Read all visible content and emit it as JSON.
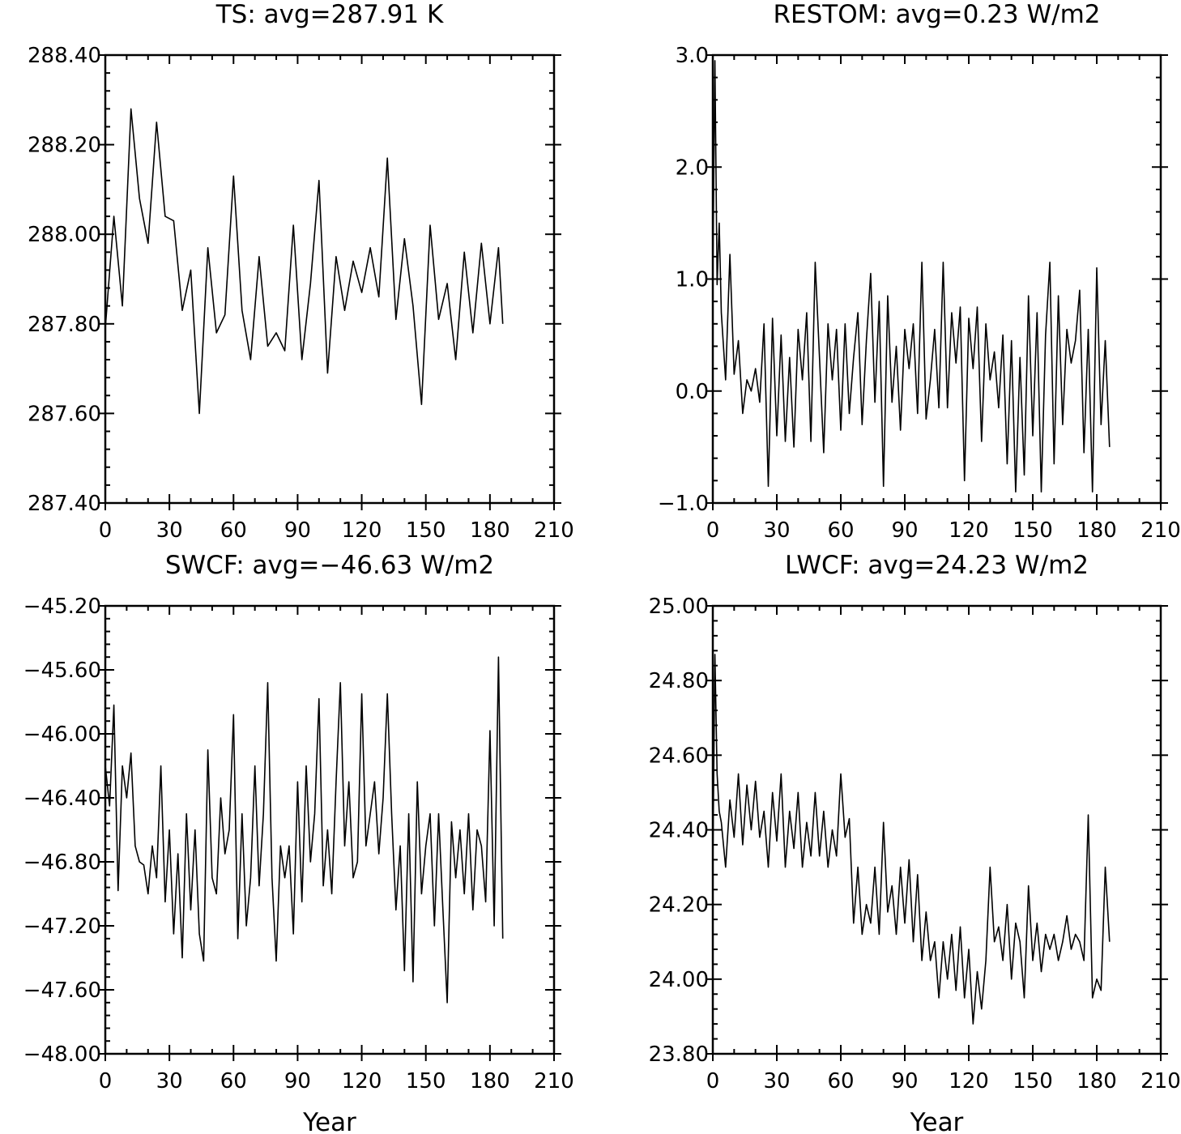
{
  "chart_data": [
    {
      "type": "line",
      "title": "TS: avg=287.91 K",
      "xlabel": "",
      "ylabel": "",
      "xlim": [
        0,
        210
      ],
      "ylim": [
        287.4,
        288.4
      ],
      "xticks": [
        0,
        30,
        60,
        90,
        120,
        150,
        180,
        210
      ],
      "xtick_labels": [
        "0",
        "30",
        "60",
        "90",
        "120",
        "150",
        "180",
        "210"
      ],
      "yticks": [
        287.4,
        287.6,
        287.8,
        288.0,
        288.2,
        288.4
      ],
      "ytick_labels": [
        "287.40",
        "287.60",
        "287.80",
        "288.00",
        "288.20",
        "288.40"
      ],
      "grid": false,
      "series": [
        {
          "x": [
            0,
            4,
            8,
            12,
            16,
            20,
            24,
            28,
            32,
            36,
            40,
            44,
            48,
            52,
            56,
            60,
            64,
            68,
            72,
            76,
            80,
            84,
            88,
            92,
            96,
            100,
            104,
            108,
            112,
            116,
            120,
            124,
            128,
            132,
            136,
            140,
            144,
            148,
            152,
            156,
            160,
            164,
            168,
            172,
            176,
            180,
            184,
            186
          ],
          "values": [
            287.79,
            288.04,
            287.84,
            288.28,
            288.08,
            287.98,
            288.25,
            288.04,
            288.03,
            287.83,
            287.92,
            287.6,
            287.97,
            287.78,
            287.82,
            288.13,
            287.83,
            287.72,
            287.95,
            287.75,
            287.78,
            287.74,
            288.02,
            287.72,
            287.89,
            288.12,
            287.69,
            287.95,
            287.83,
            287.94,
            287.87,
            287.97,
            287.86,
            288.17,
            287.81,
            287.99,
            287.84,
            287.62,
            288.02,
            287.81,
            287.89,
            287.72,
            287.96,
            287.78,
            287.98,
            287.8,
            287.97,
            287.8
          ]
        }
      ]
    },
    {
      "type": "line",
      "title": "RESTOM: avg=0.23 W/m2",
      "xlabel": "",
      "ylabel": "",
      "xlim": [
        0,
        210
      ],
      "ylim": [
        -1.0,
        3.0
      ],
      "xticks": [
        0,
        30,
        60,
        90,
        120,
        150,
        180,
        210
      ],
      "xtick_labels": [
        "0",
        "30",
        "60",
        "90",
        "120",
        "150",
        "180",
        "210"
      ],
      "yticks": [
        -1.0,
        0.0,
        1.0,
        2.0,
        3.0
      ],
      "ytick_labels": [
        "−1.0",
        "0.0",
        "1.0",
        "2.0",
        "3.0"
      ],
      "grid": false,
      "series": [
        {
          "x": [
            0,
            1,
            2,
            3,
            4,
            6,
            8,
            10,
            12,
            14,
            16,
            18,
            20,
            22,
            24,
            26,
            28,
            30,
            32,
            34,
            36,
            38,
            40,
            42,
            44,
            46,
            48,
            50,
            52,
            54,
            56,
            58,
            60,
            62,
            64,
            66,
            68,
            70,
            72,
            74,
            76,
            78,
            80,
            82,
            84,
            86,
            88,
            90,
            92,
            94,
            96,
            98,
            100,
            102,
            104,
            106,
            108,
            110,
            112,
            114,
            116,
            118,
            120,
            122,
            124,
            126,
            128,
            130,
            132,
            134,
            136,
            138,
            140,
            142,
            144,
            146,
            148,
            150,
            152,
            154,
            156,
            158,
            160,
            162,
            164,
            166,
            168,
            170,
            172,
            174,
            176,
            178,
            180,
            182,
            184,
            186
          ],
          "values": [
            1.0,
            2.95,
            0.95,
            1.5,
            0.7,
            0.1,
            1.22,
            0.15,
            0.45,
            -0.2,
            0.1,
            0.0,
            0.2,
            -0.1,
            0.6,
            -0.85,
            0.65,
            -0.4,
            0.5,
            -0.45,
            0.3,
            -0.5,
            0.55,
            0.1,
            0.7,
            -0.45,
            1.15,
            0.3,
            -0.55,
            0.6,
            0.1,
            0.55,
            -0.35,
            0.6,
            -0.2,
            0.3,
            0.7,
            -0.3,
            0.45,
            1.05,
            -0.1,
            0.8,
            -0.85,
            0.85,
            -0.1,
            0.4,
            -0.35,
            0.55,
            0.2,
            0.6,
            -0.2,
            1.15,
            -0.25,
            0.1,
            0.55,
            -0.15,
            1.15,
            -0.15,
            0.7,
            0.25,
            0.75,
            -0.8,
            0.65,
            0.2,
            0.75,
            -0.45,
            0.6,
            0.1,
            0.35,
            -0.15,
            0.5,
            -0.65,
            0.45,
            -0.9,
            0.3,
            -0.75,
            0.85,
            -0.4,
            0.7,
            -0.9,
            0.5,
            1.15,
            -0.65,
            0.85,
            -0.3,
            0.55,
            0.25,
            0.45,
            0.9,
            -0.55,
            0.55,
            -0.9,
            1.1,
            -0.3,
            0.45,
            -0.5
          ]
        }
      ]
    },
    {
      "type": "line",
      "title": "SWCF: avg=−46.63 W/m2",
      "xlabel": "Year",
      "ylabel": "",
      "xlim": [
        0,
        210
      ],
      "ylim": [
        -48.0,
        -45.2
      ],
      "xticks": [
        0,
        30,
        60,
        90,
        120,
        150,
        180,
        210
      ],
      "xtick_labels": [
        "0",
        "30",
        "60",
        "90",
        "120",
        "150",
        "180",
        "210"
      ],
      "yticks": [
        -48.0,
        -47.6,
        -47.2,
        -46.8,
        -46.4,
        -46.0,
        -45.6,
        -45.2
      ],
      "ytick_labels": [
        "−48.00",
        "−47.60",
        "−47.20",
        "−46.80",
        "−46.40",
        "−46.00",
        "−45.60",
        "−45.20"
      ],
      "grid": false,
      "series": [
        {
          "x": [
            0,
            2,
            4,
            6,
            8,
            10,
            12,
            14,
            16,
            18,
            20,
            22,
            24,
            26,
            28,
            30,
            32,
            34,
            36,
            38,
            40,
            42,
            44,
            46,
            48,
            50,
            52,
            54,
            56,
            58,
            60,
            62,
            64,
            66,
            68,
            70,
            72,
            74,
            76,
            78,
            80,
            82,
            84,
            86,
            88,
            90,
            92,
            94,
            96,
            98,
            100,
            102,
            104,
            106,
            108,
            110,
            112,
            114,
            116,
            118,
            120,
            122,
            124,
            126,
            128,
            130,
            132,
            134,
            136,
            138,
            140,
            142,
            144,
            146,
            148,
            150,
            152,
            154,
            156,
            158,
            160,
            162,
            164,
            166,
            168,
            170,
            172,
            174,
            176,
            178,
            180,
            182,
            184,
            186
          ],
          "values": [
            -46.2,
            -46.45,
            -45.82,
            -46.98,
            -46.2,
            -46.4,
            -46.12,
            -46.7,
            -46.8,
            -46.82,
            -47.0,
            -46.7,
            -46.9,
            -46.2,
            -47.05,
            -46.6,
            -47.25,
            -46.75,
            -47.4,
            -46.5,
            -47.1,
            -46.6,
            -47.25,
            -47.42,
            -46.1,
            -46.9,
            -47.0,
            -46.4,
            -46.75,
            -46.6,
            -45.88,
            -47.28,
            -46.5,
            -47.2,
            -46.9,
            -46.2,
            -46.95,
            -46.5,
            -45.68,
            -46.9,
            -47.42,
            -46.7,
            -46.9,
            -46.7,
            -47.25,
            -46.3,
            -47.05,
            -46.2,
            -46.8,
            -46.5,
            -45.78,
            -46.95,
            -46.6,
            -47.0,
            -46.3,
            -45.68,
            -46.7,
            -46.3,
            -46.9,
            -46.8,
            -45.75,
            -46.7,
            -46.5,
            -46.3,
            -46.75,
            -46.4,
            -45.75,
            -46.5,
            -47.1,
            -46.7,
            -47.48,
            -46.5,
            -47.55,
            -46.3,
            -47.0,
            -46.7,
            -46.5,
            -47.2,
            -46.5,
            -47.1,
            -47.68,
            -46.55,
            -46.9,
            -46.6,
            -47.0,
            -46.5,
            -47.1,
            -46.6,
            -46.7,
            -47.05,
            -45.98,
            -47.2,
            -45.52,
            -47.28
          ]
        }
      ]
    },
    {
      "type": "line",
      "title": "LWCF: avg=24.23 W/m2",
      "xlabel": "Year",
      "ylabel": "",
      "xlim": [
        0,
        210
      ],
      "ylim": [
        23.8,
        25.0
      ],
      "xticks": [
        0,
        30,
        60,
        90,
        120,
        150,
        180,
        210
      ],
      "xtick_labels": [
        "0",
        "30",
        "60",
        "90",
        "120",
        "150",
        "180",
        "210"
      ],
      "yticks": [
        23.8,
        24.0,
        24.2,
        24.4,
        24.6,
        24.8,
        25.0
      ],
      "ytick_labels": [
        "23.80",
        "24.00",
        "24.20",
        "24.40",
        "24.60",
        "24.80",
        "25.00"
      ],
      "grid": false,
      "series": [
        {
          "x": [
            0,
            1,
            2,
            3,
            4,
            6,
            8,
            10,
            12,
            14,
            16,
            18,
            20,
            22,
            24,
            26,
            28,
            30,
            32,
            34,
            36,
            38,
            40,
            42,
            44,
            46,
            48,
            50,
            52,
            54,
            56,
            58,
            60,
            62,
            64,
            66,
            68,
            70,
            72,
            74,
            76,
            78,
            80,
            82,
            84,
            86,
            88,
            90,
            92,
            94,
            96,
            98,
            100,
            102,
            104,
            106,
            108,
            110,
            112,
            114,
            116,
            118,
            120,
            122,
            124,
            126,
            128,
            130,
            132,
            134,
            136,
            138,
            140,
            142,
            144,
            146,
            148,
            150,
            152,
            154,
            156,
            158,
            160,
            162,
            164,
            166,
            168,
            170,
            172,
            174,
            176,
            178,
            180,
            182,
            184,
            186
          ],
          "values": [
            24.3,
            24.87,
            24.55,
            24.45,
            24.42,
            24.3,
            24.48,
            24.38,
            24.55,
            24.36,
            24.52,
            24.4,
            24.53,
            24.38,
            24.45,
            24.3,
            24.5,
            24.37,
            24.55,
            24.3,
            24.45,
            24.35,
            24.5,
            24.3,
            24.42,
            24.33,
            24.5,
            24.33,
            24.45,
            24.3,
            24.4,
            24.33,
            24.55,
            24.38,
            24.43,
            24.15,
            24.3,
            24.12,
            24.2,
            24.15,
            24.3,
            24.12,
            24.42,
            24.18,
            24.25,
            24.12,
            24.3,
            24.15,
            24.32,
            24.1,
            24.28,
            24.05,
            24.18,
            24.05,
            24.1,
            23.95,
            24.1,
            24.0,
            24.12,
            23.97,
            24.14,
            23.95,
            24.08,
            23.88,
            24.02,
            23.92,
            24.05,
            24.3,
            24.1,
            24.14,
            24.05,
            24.2,
            24.0,
            24.15,
            24.1,
            23.95,
            24.25,
            24.05,
            24.15,
            24.02,
            24.12,
            24.08,
            24.12,
            24.05,
            24.1,
            24.17,
            24.08,
            24.12,
            24.1,
            24.05,
            24.44,
            23.95,
            24.0,
            23.97,
            24.3,
            24.1
          ]
        }
      ]
    }
  ]
}
